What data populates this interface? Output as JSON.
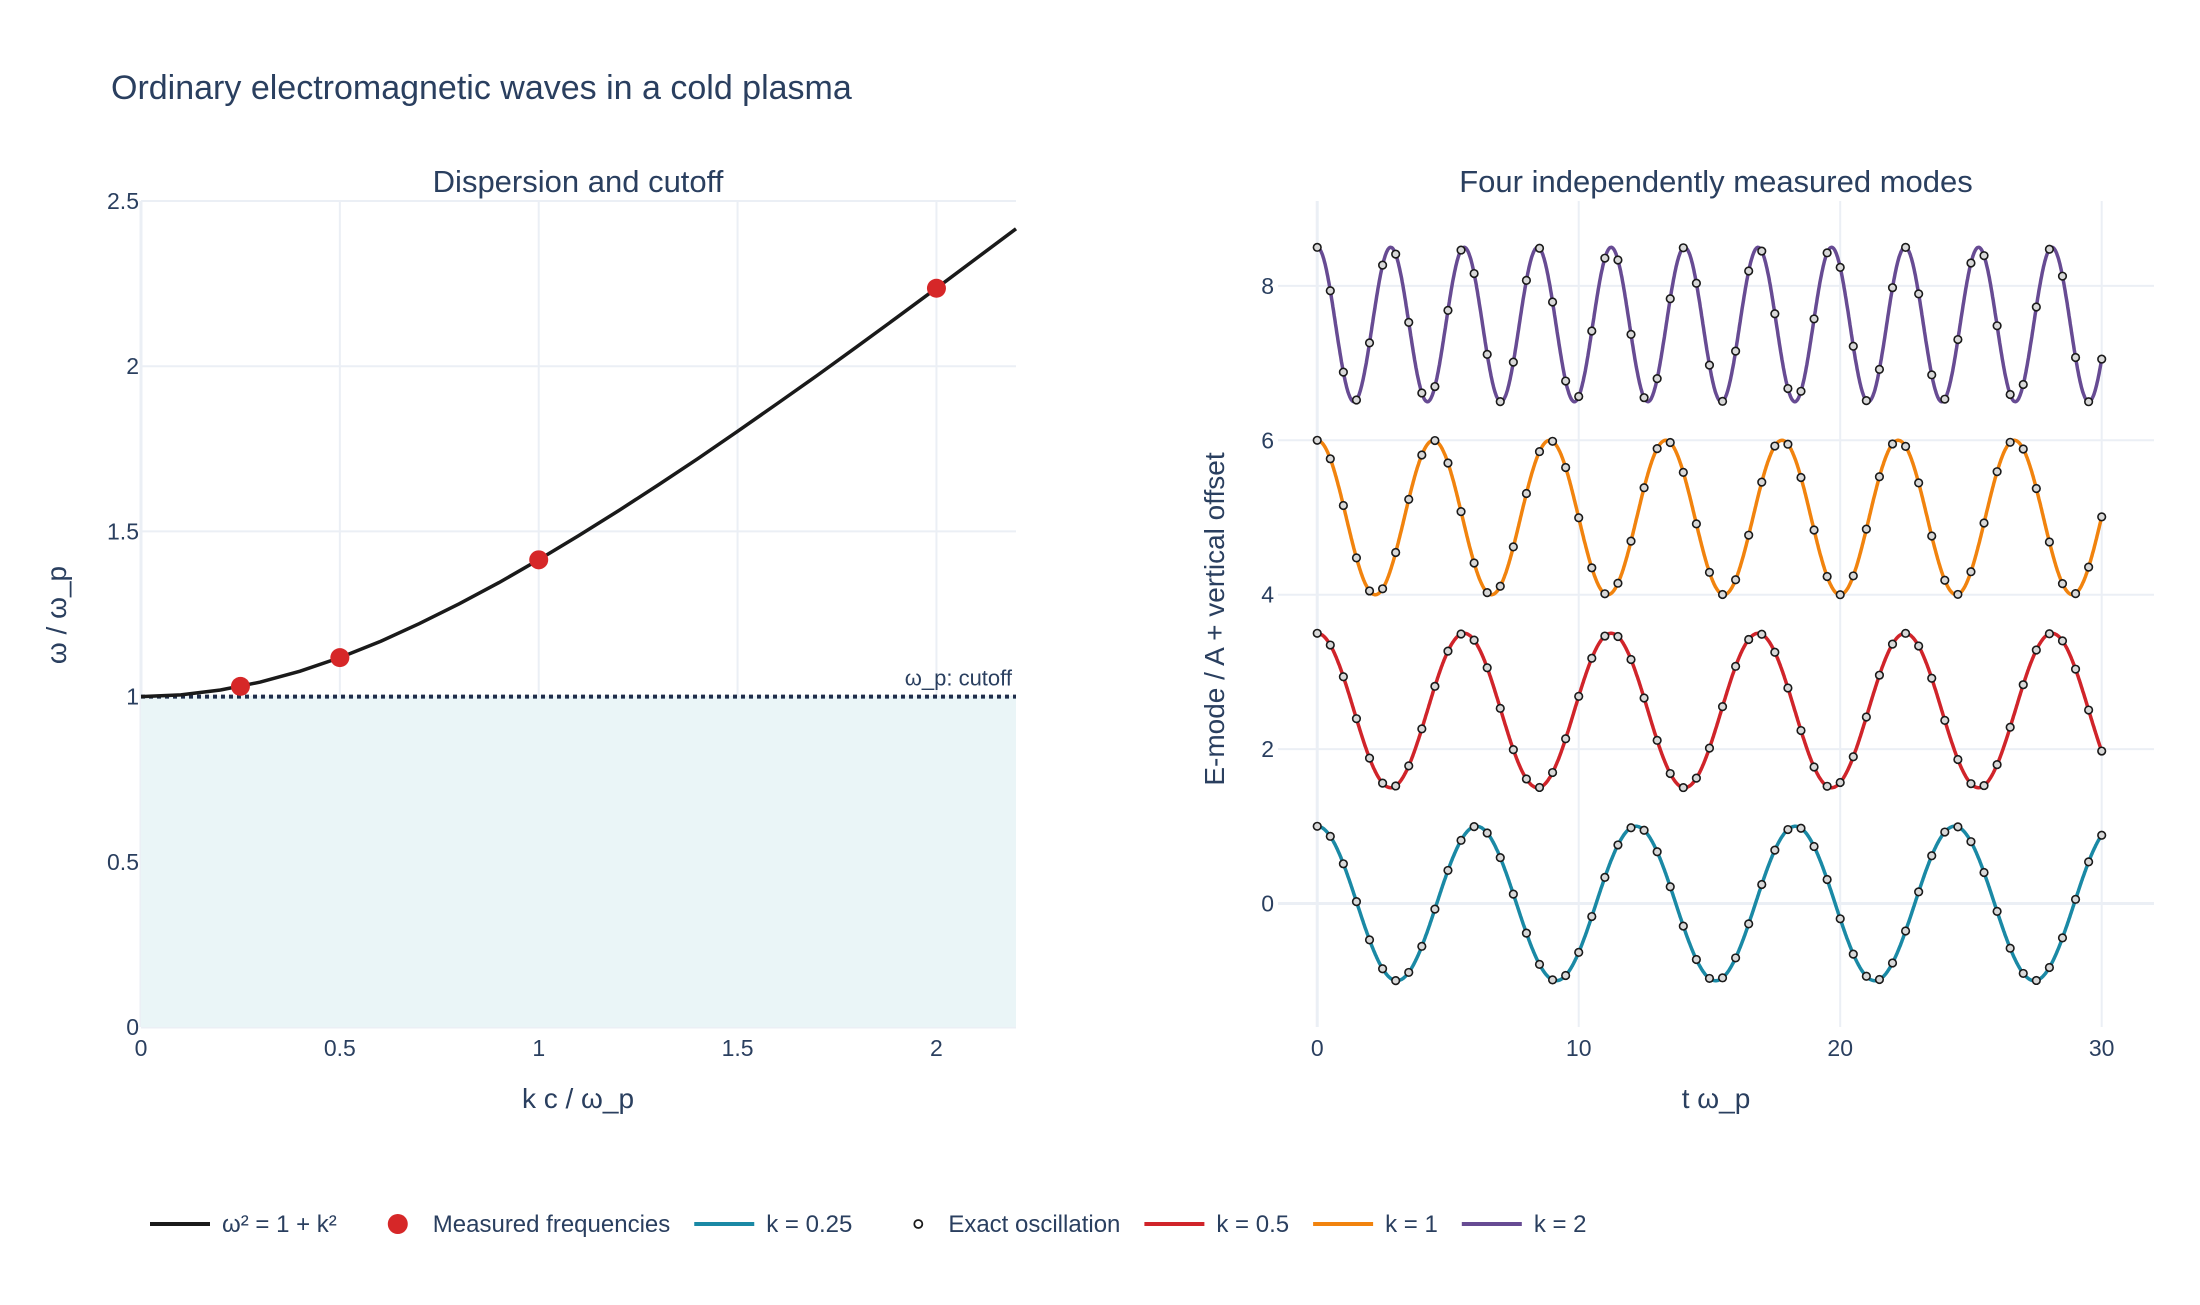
{
  "title": "Ordinary electromagnetic waves in a cold plasma",
  "colors": {
    "theory": "#1a1a1a",
    "measured": "#d62728",
    "k025": "#1a89a5",
    "k05": "#d0242a",
    "k1": "#f1830e",
    "k2": "#674b93",
    "shade": "#eaf5f7",
    "cutoff": "#1f2d4a"
  },
  "chart_data": [
    {
      "type": "line",
      "title": "Dispersion and cutoff",
      "xlabel": "k c / ω_p",
      "ylabel": "ω / ω_p",
      "xlim": [
        0,
        2.2
      ],
      "ylim": [
        0,
        2.5
      ],
      "xticks": [
        0,
        0.5,
        1,
        1.5,
        2
      ],
      "xtick_labels": [
        "0",
        "0.5",
        "1",
        "1.5",
        "2"
      ],
      "yticks": [
        0,
        0.5,
        1,
        1.5,
        2,
        2.5
      ],
      "ytick_labels": [
        "0",
        "0.5",
        "1",
        "1.5",
        "2",
        "2.5"
      ],
      "grid": true,
      "series": [
        {
          "name": "ω² = 1 + k²",
          "type": "line",
          "x": [
            0,
            0.1,
            0.2,
            0.3,
            0.4,
            0.5,
            0.6,
            0.7,
            0.8,
            0.9,
            1.0,
            1.1,
            1.2,
            1.3,
            1.4,
            1.5,
            1.6,
            1.7,
            1.8,
            1.9,
            2.0,
            2.1,
            2.2
          ],
          "y": [
            1.0,
            1.005,
            1.02,
            1.044,
            1.077,
            1.118,
            1.166,
            1.221,
            1.281,
            1.345,
            1.414,
            1.487,
            1.562,
            1.64,
            1.72,
            1.803,
            1.887,
            1.972,
            2.059,
            2.147,
            2.236,
            2.326,
            2.416
          ]
        },
        {
          "name": "Measured frequencies",
          "type": "scatter",
          "x": [
            0.25,
            0.5,
            1.0,
            2.0
          ],
          "y": [
            1.031,
            1.118,
            1.414,
            2.236
          ]
        }
      ],
      "shaded_region": {
        "y_from": 0,
        "y_to": 1
      },
      "annotations": [
        {
          "x": 2.2,
          "y": 1,
          "text": "ω_p: cutoff"
        }
      ]
    },
    {
      "type": "line",
      "title": "Four independently measured modes",
      "xlabel": "t ω_p",
      "ylabel": "E-mode / A + vertical offset",
      "xlim": [
        -1.5,
        32
      ],
      "ylim": [
        -1.6,
        9.1
      ],
      "xticks": [
        0,
        10,
        20,
        30
      ],
      "xtick_labels": [
        "0",
        "10",
        "20",
        "30"
      ],
      "yticks": [
        0,
        2,
        4,
        6,
        8
      ],
      "ytick_labels": [
        "0",
        "2",
        "4",
        "6",
        "8"
      ],
      "grid": true,
      "t_range": [
        0,
        30
      ],
      "sample_count": 60,
      "series": [
        {
          "name": "k = 0.25",
          "k": 0.25,
          "omega": 1.031,
          "offset": 0
        },
        {
          "name": "k = 0.5",
          "k": 0.5,
          "omega": 1.118,
          "offset": 2.5
        },
        {
          "name": "k = 1",
          "k": 1,
          "omega": 1.414,
          "offset": 5
        },
        {
          "name": "k = 2",
          "k": 2,
          "omega": 2.236,
          "offset": 7.5
        }
      ],
      "markers_name": "Exact oscillation"
    }
  ],
  "legend": {
    "placement": "bottom",
    "items": [
      {
        "label": "ω² = 1 + k²",
        "kind": "line",
        "color_key": "theory"
      },
      {
        "label": "Measured frequencies",
        "kind": "dot",
        "color_key": "measured"
      },
      {
        "label": "k = 0.25",
        "kind": "line",
        "color_key": "k025"
      },
      {
        "label": "Exact oscillation",
        "kind": "ring",
        "color_key": "theory"
      },
      {
        "label": "k = 0.5",
        "kind": "line",
        "color_key": "k05"
      },
      {
        "label": "k = 1",
        "kind": "line",
        "color_key": "k1"
      },
      {
        "label": "k = 2",
        "kind": "line",
        "color_key": "k2"
      }
    ]
  }
}
